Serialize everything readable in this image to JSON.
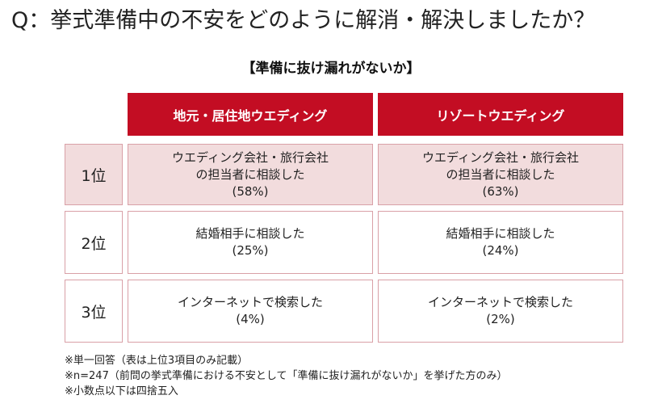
{
  "question": "Q：挙式準備中の不安をどのように解消・解決しましたか？",
  "subtitle": "【準備に抜け漏れがないか】",
  "columns": [
    "地元・居住地ウエディング",
    "リゾートウエディング"
  ],
  "rows": [
    {
      "rank": "1位",
      "local": {
        "line1": "ウエディング会社・旅行会社",
        "line2": "の担当者に相談した",
        "pct": "(58%)"
      },
      "resort": {
        "line1": "ウエディング会社・旅行会社",
        "line2": "の担当者に相談した",
        "pct": "(63%)"
      }
    },
    {
      "rank": "2位",
      "local": {
        "line1": "結婚相手に相談した",
        "pct": "(25%)"
      },
      "resort": {
        "line1": "結婚相手に相談した",
        "pct": "(24%)"
      }
    },
    {
      "rank": "3位",
      "local": {
        "line1": "インターネットで検索した",
        "pct": "(4%)"
      },
      "resort": {
        "line1": "インターネットで検索した",
        "pct": "(2%)"
      }
    }
  ],
  "notes": [
    "※単一回答（表は上位3項目のみ記載）",
    "※n=247（前問の挙式準備における不安として「準備に抜け漏れがないか」を挙げた方のみ）",
    "※小数点以下は四捨五入"
  ],
  "colors": {
    "header_bg": "#c30d23",
    "highlight_bg": "#f2dcdd",
    "border": "#d9a0a7"
  }
}
